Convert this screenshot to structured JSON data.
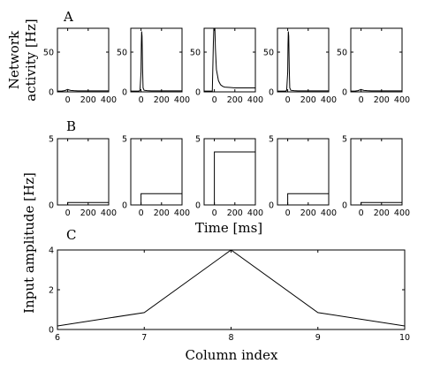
{
  "panel_labels": {
    "a": "A",
    "b": "B",
    "c": "C"
  },
  "labels": {
    "row_a_ylabel_line1": "Network",
    "row_a_ylabel_line2": "activity [Hz]",
    "time_xlabel": "Time [ms]",
    "input_ylabel": "Input amplitude [Hz]",
    "column_xlabel": "Column index"
  },
  "colors": {
    "line": "#000000",
    "axis": "#000000",
    "background": "#ffffff"
  },
  "chart_data": [
    {
      "type": "line",
      "panel": "A",
      "xlabel": "Time [ms]",
      "ylabel": "Network activity [Hz]",
      "xlim": [
        -100,
        400
      ],
      "ylim": [
        0,
        80
      ],
      "xticks": [
        "0",
        "200",
        "400"
      ],
      "yticks": [
        "0",
        "50"
      ],
      "series": [
        {
          "x": [
            -100,
            -60,
            -30,
            -10,
            0,
            10,
            30,
            60,
            100,
            200,
            300,
            400
          ],
          "values": [
            1,
            1,
            1.5,
            2.5,
            3,
            2.5,
            1.8,
            1.5,
            1.3,
            1.2,
            1.2,
            1.2
          ]
        },
        {
          "x": [
            -100,
            -20,
            -10,
            0,
            3,
            6,
            10,
            15,
            20,
            30,
            60,
            100,
            200,
            300,
            400
          ],
          "values": [
            1,
            1,
            2,
            25,
            60,
            76,
            70,
            30,
            5,
            2,
            1.5,
            1.3,
            1.2,
            1.2,
            1.2
          ]
        },
        {
          "x": [
            -100,
            -20,
            -10,
            -5,
            0,
            5,
            10,
            20,
            40,
            60,
            80,
            100,
            150,
            200,
            300,
            400
          ],
          "values": [
            1,
            1,
            60,
            80,
            80,
            80,
            55,
            28,
            14,
            9,
            7,
            6,
            5.5,
            5,
            5,
            5
          ]
        },
        {
          "x": [
            -100,
            -20,
            -10,
            0,
            3,
            6,
            10,
            15,
            20,
            30,
            60,
            100,
            200,
            300,
            400
          ],
          "values": [
            1,
            1,
            2,
            25,
            60,
            76,
            70,
            30,
            5,
            2,
            1.5,
            1.3,
            1.2,
            1.2,
            1.2
          ]
        },
        {
          "x": [
            -100,
            -60,
            -30,
            -10,
            0,
            10,
            30,
            60,
            100,
            200,
            300,
            400
          ],
          "values": [
            1,
            1,
            1.5,
            2.5,
            3,
            2.5,
            1.8,
            1.5,
            1.3,
            1.2,
            1.2,
            1.2
          ]
        }
      ]
    },
    {
      "type": "line",
      "panel": "B",
      "xlabel": "Time [ms]",
      "ylabel": "Input amplitude [Hz]",
      "xlim": [
        -100,
        400
      ],
      "ylim": [
        0,
        5
      ],
      "xticks": [
        "0",
        "200",
        "400"
      ],
      "yticks": [
        "0",
        "5"
      ],
      "series": [
        {
          "x": [
            -100,
            0,
            0,
            400
          ],
          "values": [
            0,
            0,
            0.18,
            0.18
          ]
        },
        {
          "x": [
            -100,
            0,
            0,
            400
          ],
          "values": [
            0,
            0,
            0.85,
            0.85
          ]
        },
        {
          "x": [
            -100,
            0,
            0,
            400
          ],
          "values": [
            0,
            0,
            4,
            4
          ]
        },
        {
          "x": [
            -100,
            0,
            0,
            400
          ],
          "values": [
            0,
            0,
            0.85,
            0.85
          ]
        },
        {
          "x": [
            -100,
            0,
            0,
            400
          ],
          "values": [
            0,
            0,
            0.18,
            0.18
          ]
        }
      ]
    },
    {
      "type": "line",
      "panel": "C",
      "xlabel": "Column index",
      "ylabel": "Input amplitude [Hz]",
      "xlim": [
        6,
        10
      ],
      "ylim": [
        0,
        4
      ],
      "xticks": [
        "6",
        "7",
        "8",
        "9",
        "10"
      ],
      "yticks": [
        "0",
        "2",
        "4"
      ],
      "x": [
        6,
        7,
        8,
        9,
        10
      ],
      "values": [
        0.18,
        0.85,
        4,
        0.85,
        0.18
      ]
    }
  ]
}
